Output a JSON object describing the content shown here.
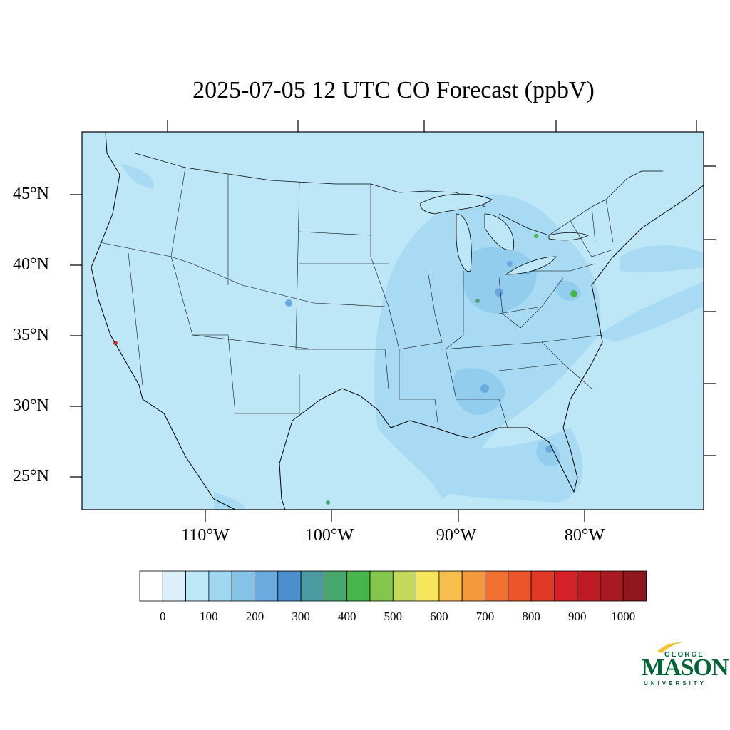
{
  "title": "2025-07-05 12 UTC CO Forecast (ppbV)",
  "lat_labels": [
    "45°N",
    "40°N",
    "35°N",
    "30°N",
    "25°N"
  ],
  "lon_labels": [
    "110°W",
    "100°W",
    "90°W",
    "80°W"
  ],
  "colorbar": {
    "labels": [
      "0",
      "100",
      "200",
      "300",
      "400",
      "500",
      "600",
      "700",
      "800",
      "900",
      "1000"
    ],
    "colors": [
      "#ffffff",
      "#dcf0fa",
      "#bde6f7",
      "#9fd7f1",
      "#86c1e6",
      "#6aaade",
      "#4c8fcf",
      "#4a9ba0",
      "#45a66e",
      "#47b54a",
      "#84c64c",
      "#c4d95a",
      "#f6e55a",
      "#f6be4a",
      "#f49a3c",
      "#f17030",
      "#eb5429",
      "#e03a27",
      "#d42027",
      "#be1c24",
      "#a81a21",
      "#8f161c"
    ]
  },
  "logo": {
    "line1": "GEORGE",
    "line2": "MASON",
    "line3": "UNIVERSITY"
  }
}
